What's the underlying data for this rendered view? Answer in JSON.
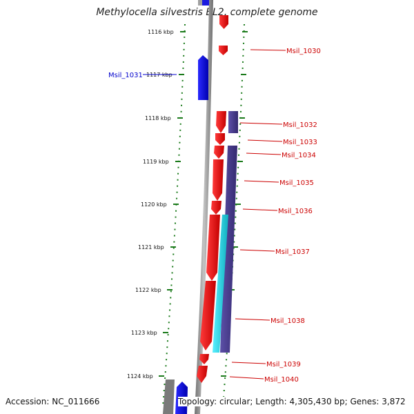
{
  "title": "Methylocella silvestris BL2, complete genome",
  "footer": {
    "accession": "Accession: NC_011666",
    "summary": "Topology: circular; Length: 4,305,430 bp; Genes: 3,872"
  },
  "colors": {
    "forward_gene": "#e00000",
    "reverse_gene": "#0a0ae0",
    "feature_purple": "#4a3d8f",
    "feature_cyan": "#22d6e6",
    "backbone": "#8c8c8c",
    "tick": "#1a7a1a",
    "label_red": "#cc0000",
    "label_blue": "#0000cc"
  },
  "ruler": {
    "ticks": [
      "1116 kbp",
      "1117 kbp",
      "1118 kbp",
      "1119 kbp",
      "1120 kbp",
      "1121 kbp",
      "1122 kbp",
      "1123 kbp",
      "1124 kbp"
    ]
  },
  "genes": [
    {
      "name": "Msil_1030",
      "side": "right",
      "color": "red"
    },
    {
      "name": "Msil_1031",
      "side": "left",
      "color": "blue"
    },
    {
      "name": "Msil_1032",
      "side": "right",
      "color": "red"
    },
    {
      "name": "Msil_1033",
      "side": "right",
      "color": "red"
    },
    {
      "name": "Msil_1034",
      "side": "right",
      "color": "red"
    },
    {
      "name": "Msil_1035",
      "side": "right",
      "color": "red"
    },
    {
      "name": "Msil_1036",
      "side": "right",
      "color": "red"
    },
    {
      "name": "Msil_1037",
      "side": "right",
      "color": "red"
    },
    {
      "name": "Msil_1038",
      "side": "right",
      "color": "red"
    },
    {
      "name": "Msil_1039",
      "side": "right",
      "color": "red"
    },
    {
      "name": "Msil_1040",
      "side": "right",
      "color": "red"
    }
  ]
}
